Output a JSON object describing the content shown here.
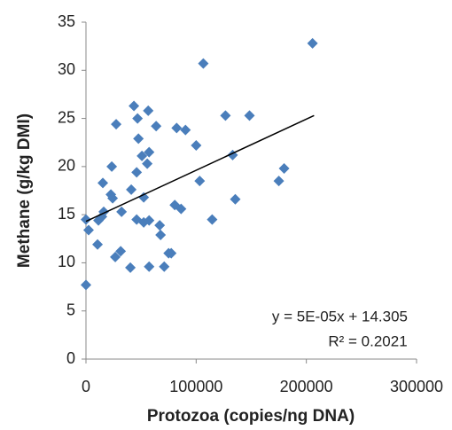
{
  "chart_data": {
    "type": "scatter",
    "x_label": "Protozoa (copies/ng DNA)",
    "y_label": "Methane (g/kg DMI)",
    "annotations": [
      "y = 5E-05x + 14.305",
      "R² = 0.2021"
    ],
    "xlim": [
      0,
      300000
    ],
    "xticks": [
      0,
      100000,
      200000,
      300000
    ],
    "ylim": [
      0,
      35
    ],
    "yticks": [
      0,
      5,
      10,
      15,
      20,
      25,
      30,
      35
    ],
    "color": "#4a7ebb",
    "trendline": {
      "x": [
        0,
        207000
      ],
      "y": [
        14.305,
        25.3
      ],
      "color": "#000000"
    },
    "x": [
      0,
      0,
      2400,
      10500,
      11300,
      14500,
      16100,
      15300,
      22600,
      24200,
      23400,
      26600,
      31500,
      32300,
      27400,
      40300,
      41100,
      43500,
      46000,
      46800,
      47600,
      46000,
      50800,
      52400,
      52400,
      55600,
      56500,
      57300,
      57300,
      57300,
      63700,
      66900,
      67700,
      71000,
      75000,
      77400,
      80600,
      82300,
      86300,
      90300,
      100000,
      103200,
      106500,
      114500,
      126600,
      133100,
      135500,
      148400,
      175000,
      179800,
      205600
    ],
    "values": [
      7.7,
      14.5,
      13.4,
      11.9,
      14.4,
      14.8,
      15.3,
      18.3,
      17.1,
      16.7,
      20.0,
      10.6,
      11.2,
      15.3,
      24.4,
      9.5,
      17.6,
      26.3,
      19.4,
      25.0,
      22.9,
      14.5,
      21.1,
      14.2,
      16.8,
      20.3,
      25.8,
      21.5,
      9.6,
      14.4,
      24.2,
      13.9,
      12.9,
      9.6,
      11.0,
      11.0,
      16.0,
      24.0,
      15.6,
      23.8,
      22.2,
      18.5,
      30.7,
      14.5,
      25.3,
      21.2,
      16.6,
      25.3,
      18.5,
      19.8,
      32.8
    ]
  }
}
